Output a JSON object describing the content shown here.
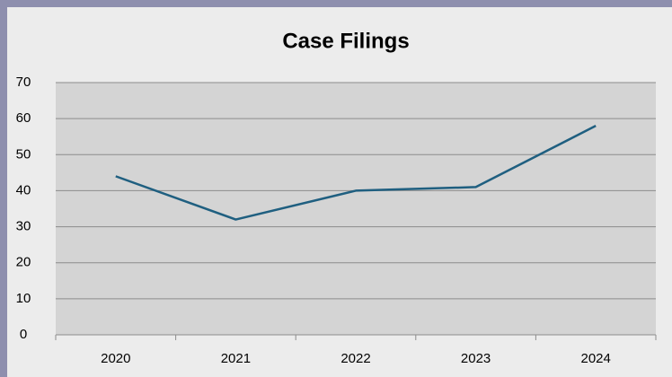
{
  "chart_data": {
    "type": "line",
    "title": "Case Filings",
    "categories": [
      "2020",
      "2021",
      "2022",
      "2023",
      "2024"
    ],
    "series": [
      {
        "name": "Case Filings",
        "color": "#1f5f80",
        "values": [
          44,
          32,
          40,
          41,
          58
        ]
      }
    ],
    "ylim": [
      0,
      70
    ],
    "yticks": [
      0,
      10,
      20,
      30,
      40,
      50,
      60,
      70
    ],
    "grid": true
  }
}
